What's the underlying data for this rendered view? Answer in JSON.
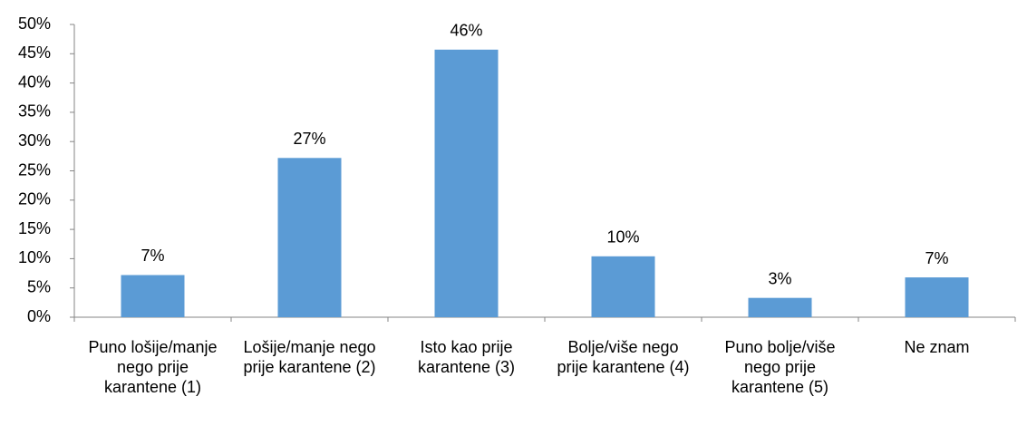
{
  "chart_data": {
    "type": "bar",
    "categories": [
      "Puno lošije/manje nego prije karantene (1)",
      "Lošije/manje nego prije karantene (2)",
      "Isto kao prije karantene (3)",
      "Bolje/više nego prije karantene (4)",
      "Puno bolje/više nego prije karantene (5)",
      "Ne znam"
    ],
    "values": [
      7.2,
      27.2,
      45.7,
      10.4,
      3.3,
      6.8
    ],
    "value_labels": [
      "7%",
      "27%",
      "46%",
      "10%",
      "3%",
      "7%"
    ],
    "color": "#5b9bd5",
    "ylim": [
      0,
      50
    ],
    "yticks": [
      {
        "value": 0,
        "label": "0%"
      },
      {
        "value": 5,
        "label": "5%"
      },
      {
        "value": 10,
        "label": "10%"
      },
      {
        "value": 15,
        "label": "15%"
      },
      {
        "value": 20,
        "label": "20%"
      },
      {
        "value": 25,
        "label": "25%"
      },
      {
        "value": 30,
        "label": "30%"
      },
      {
        "value": 35,
        "label": "35%"
      },
      {
        "value": 40,
        "label": "40%"
      },
      {
        "value": 45,
        "label": "45%"
      },
      {
        "value": 50,
        "label": "50%"
      }
    ],
    "grid": false
  }
}
